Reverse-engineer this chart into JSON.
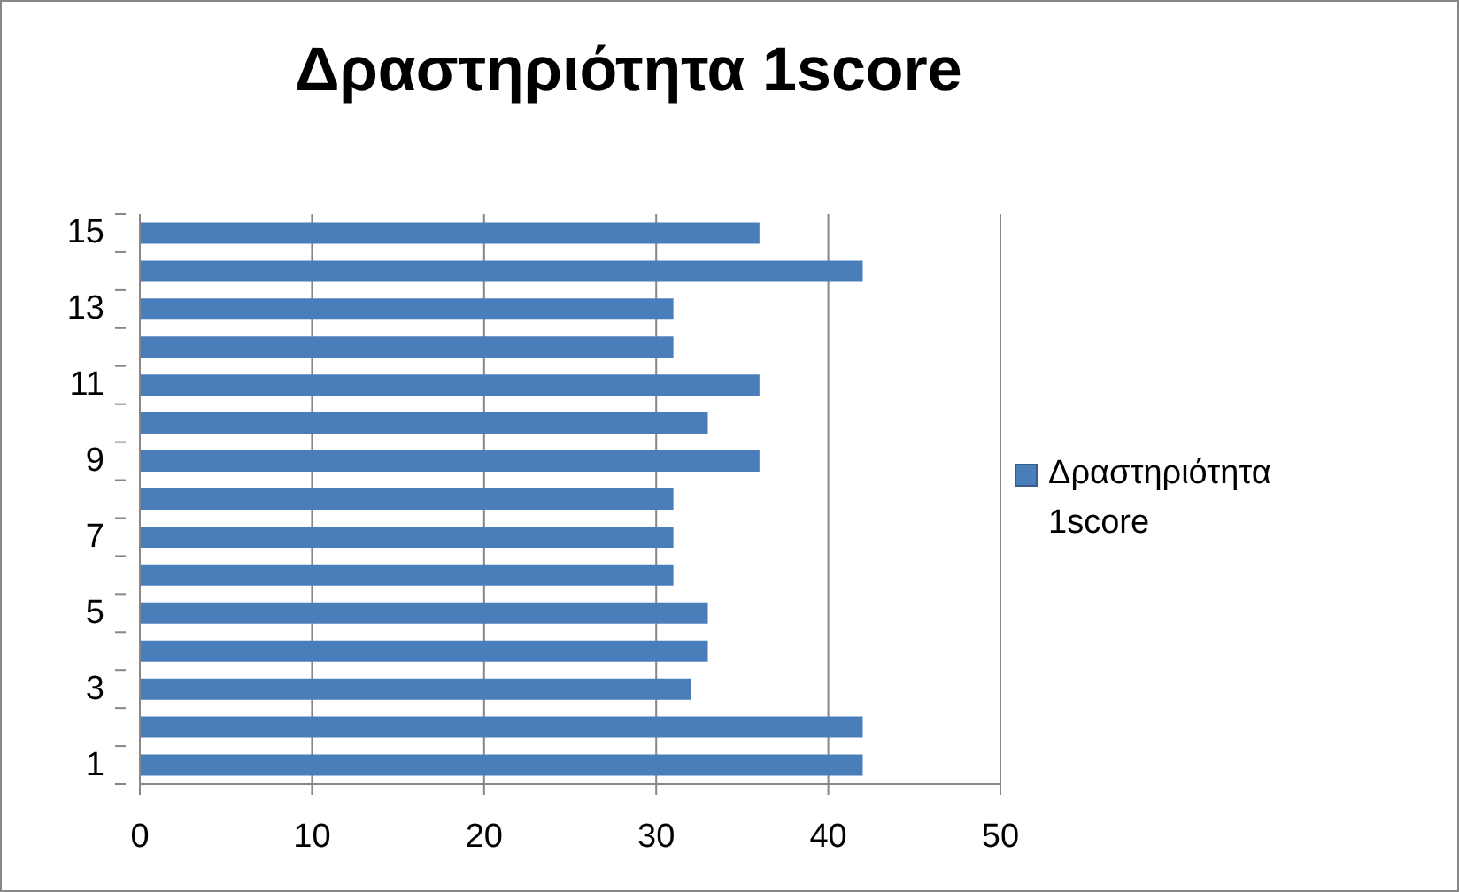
{
  "chart_data": {
    "type": "bar",
    "orientation": "horizontal",
    "title": "Δραστηριότητα 1score",
    "categories": [
      "15",
      null,
      "13",
      null,
      "11",
      null,
      "9",
      null,
      "7",
      null,
      "5",
      null,
      "3",
      null,
      "1"
    ],
    "series": [
      {
        "name": "Δραστηριότητα 1score",
        "color": "#4a7ebb",
        "values": [
          36,
          42,
          31,
          31,
          36,
          33,
          36,
          31,
          31,
          31,
          33,
          33,
          32,
          42,
          42
        ]
      }
    ],
    "xlim": [
      0,
      50
    ],
    "xticks": [
      0,
      10,
      20,
      30,
      40,
      50
    ],
    "grid": "x",
    "legend": "right"
  }
}
